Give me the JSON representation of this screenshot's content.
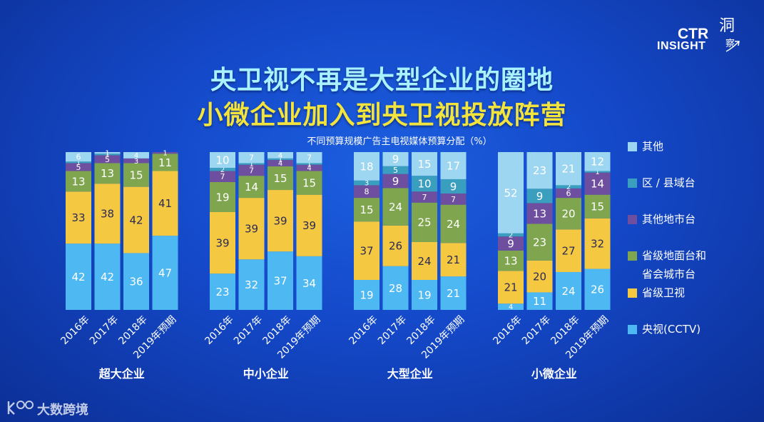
{
  "header": {
    "title_line1": "央卫视不再是大型企业的圈地",
    "title_line2": "小微企业加入到央卫视投放阵营"
  },
  "logo": {
    "line1": "CTR",
    "line2": "INSIGHT",
    "cn_main": "洞",
    "cn_sub": "察"
  },
  "watermark": {
    "text": "大数跨境"
  },
  "colors": {
    "其他": "#9dd6f0",
    "区 / 县域台": "#3a9fbf",
    "其他地市台": "#6e4e9e",
    "省级地面台和省会城市台": "#7fa64f",
    "省级卫视": "#f5c842",
    "央视(CCTV)": "#4db8f2"
  },
  "legend": [
    {
      "key": "其他",
      "lines": [
        "其他"
      ]
    },
    {
      "key": "区 / 县域台",
      "lines": [
        "区 / 县域台"
      ]
    },
    {
      "key": "其他地市台",
      "lines": [
        "其他地市台"
      ]
    },
    {
      "key": "省级地面台和省会城市台",
      "lines": [
        "省级地面台和",
        "省会城市台"
      ]
    },
    {
      "key": "省级卫视",
      "lines": [
        "省级卫视"
      ]
    },
    {
      "key": "央视(CCTV)",
      "lines": [
        "央视(CCTV)"
      ]
    }
  ],
  "chart_data": {
    "type": "bar",
    "stacked": true,
    "title": "不同预算规模广告主电视媒体预算分配（%）",
    "ylim": [
      0,
      100
    ],
    "series_order_bottom_to_top": [
      "央视(CCTV)",
      "省级卫视",
      "省级地面台和省会城市台",
      "其他地市台",
      "区 / 县域台",
      "其他"
    ],
    "groups": [
      {
        "name": "超大企业",
        "categories": [
          "2016年",
          "2017年",
          "2018年",
          "2019年预期"
        ],
        "series": {
          "央视(CCTV)": [
            42,
            42,
            36,
            47
          ],
          "省级卫视": [
            33,
            38,
            42,
            41
          ],
          "省级地面台和省会城市台": [
            13,
            13,
            15,
            11
          ],
          "其他地市台": [
            5,
            5,
            3,
            1
          ],
          "区 / 县域台": [
            1,
            1,
            0,
            0
          ],
          "其他": [
            6,
            1,
            4,
            0
          ]
        }
      },
      {
        "name": "中小企业",
        "categories": [
          "2016年",
          "2017年",
          "2018年",
          "2019年预期"
        ],
        "series": {
          "央视(CCTV)": [
            23,
            32,
            37,
            34
          ],
          "省级卫视": [
            39,
            39,
            39,
            39
          ],
          "省级地面台和省会城市台": [
            19,
            14,
            15,
            15
          ],
          "其他地市台": [
            7,
            7,
            4,
            4
          ],
          "区 / 县域台": [
            2,
            1,
            1,
            1
          ],
          "其他": [
            10,
            7,
            4,
            7
          ]
        }
      },
      {
        "name": "大型企业",
        "categories": [
          "2016年",
          "2017年",
          "2018年",
          "2019年预期"
        ],
        "series": {
          "央视(CCTV)": [
            19,
            28,
            19,
            21
          ],
          "省级卫视": [
            37,
            26,
            24,
            21
          ],
          "省级地面台和省会城市台": [
            15,
            24,
            25,
            24
          ],
          "其他地市台": [
            8,
            9,
            7,
            7
          ],
          "区 / 县域台": [
            3,
            5,
            10,
            9
          ],
          "其他": [
            18,
            9,
            15,
            17
          ]
        }
      },
      {
        "name": "小微企业",
        "categories": [
          "2016年",
          "2017年",
          "2018年",
          "2019年预期"
        ],
        "series": {
          "央视(CCTV)": [
            4,
            11,
            24,
            26
          ],
          "省级卫视": [
            21,
            20,
            27,
            32
          ],
          "省级地面台和省会城市台": [
            13,
            23,
            20,
            15
          ],
          "其他地市台": [
            9,
            13,
            6,
            14
          ],
          "区 / 县域台": [
            2,
            9,
            2,
            1
          ],
          "其他": [
            52,
            23,
            21,
            12
          ]
        }
      }
    ]
  }
}
